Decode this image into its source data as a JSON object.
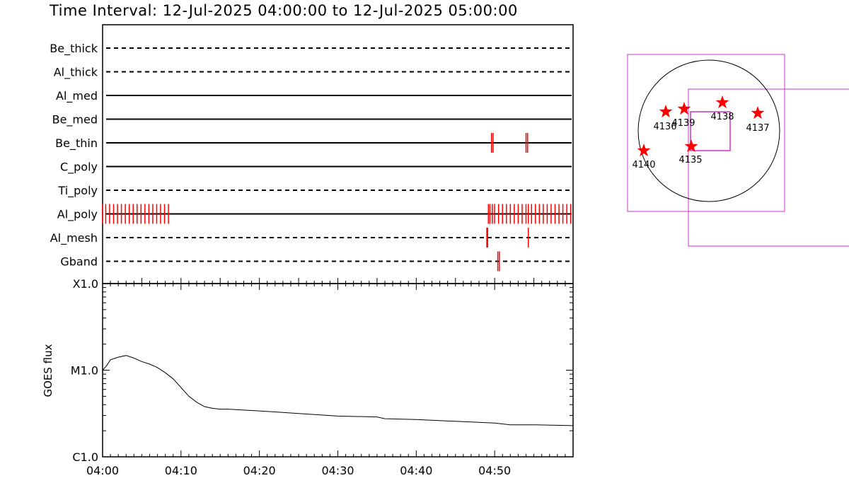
{
  "header": {
    "title": "Time Interval: 12-Jul-2025 04:00:00 to 12-Jul-2025 05:00:00"
  },
  "colors": {
    "axis": "#000000",
    "event_marks": "#ff0000",
    "fov_box": "#cc33cc",
    "sun_outline": "#000000",
    "star": "#ff0000"
  },
  "chart_data": [
    {
      "type": "timeline",
      "x_domain_minutes": [
        0,
        60
      ],
      "rows": [
        {
          "label": "Be_thick",
          "line": "dashed",
          "marks": []
        },
        {
          "label": "Al_thick",
          "line": "dashed",
          "marks": []
        },
        {
          "label": "Al_med",
          "line": "solid",
          "marks": []
        },
        {
          "label": "Be_med",
          "line": "solid",
          "marks": []
        },
        {
          "label": "Be_thin",
          "line": "solid",
          "marks": [
            49.6,
            49.8,
            54.0,
            54.2
          ]
        },
        {
          "label": "C_poly",
          "line": "solid",
          "marks": []
        },
        {
          "label": "Ti_poly",
          "line": "dashed",
          "marks": []
        },
        {
          "label": "Al_poly",
          "line": "solid",
          "marks": [
            0.0,
            0.4,
            0.9,
            1.4,
            1.9,
            2.4,
            2.9,
            3.4,
            3.9,
            4.4,
            4.9,
            5.4,
            5.9,
            6.4,
            6.9,
            7.4,
            7.9,
            8.4,
            49.2,
            49.4,
            49.7,
            50.0,
            50.5,
            51.0,
            51.5,
            52.0,
            52.5,
            53.0,
            53.5,
            54.0,
            54.3,
            54.7,
            55.2,
            55.7,
            56.2,
            56.7,
            57.2,
            57.7,
            58.2,
            58.7,
            59.2,
            59.7
          ]
        },
        {
          "label": "Al_mesh",
          "line": "dashed",
          "marks": [
            49.0,
            49.1,
            54.3
          ]
        },
        {
          "label": "Gband",
          "line": "dashed",
          "marks": [
            50.4,
            50.6
          ]
        }
      ]
    },
    {
      "type": "line",
      "ylabel": "GOES flux",
      "yscale": "log",
      "yticks": [
        "C1.0",
        "M1.0",
        "X1.0"
      ],
      "ylim": [
        "C1.0",
        "X1.0"
      ],
      "xticks": [
        "04:00",
        "04:10",
        "04:20",
        "04:30",
        "04:40",
        "04:50"
      ],
      "x_minutes": [
        0,
        0.5,
        1,
        2,
        3,
        4,
        5,
        6,
        7,
        8,
        9,
        10,
        11,
        12,
        13,
        14,
        15,
        16,
        20,
        25,
        30,
        35,
        36,
        40,
        45,
        50,
        52,
        55,
        60
      ],
      "y_log10_units": [
        -5.0,
        -4.95,
        -4.88,
        -4.85,
        -4.83,
        -4.86,
        -4.9,
        -4.93,
        -4.97,
        -5.03,
        -5.1,
        -5.2,
        -5.3,
        -5.37,
        -5.42,
        -5.44,
        -5.45,
        -5.45,
        -5.47,
        -5.5,
        -5.53,
        -5.54,
        -5.56,
        -5.57,
        -5.59,
        -5.61,
        -5.63,
        -5.63,
        -5.64
      ]
    }
  ],
  "solar_map": {
    "regions": [
      {
        "label": "4136",
        "pos": "upper-left"
      },
      {
        "label": "4139",
        "pos": "upper-center"
      },
      {
        "label": "4138",
        "pos": "upper-right-center"
      },
      {
        "label": "4137",
        "pos": "right"
      },
      {
        "label": "4140",
        "pos": "left-limb"
      },
      {
        "label": "4135",
        "pos": "center"
      }
    ]
  }
}
